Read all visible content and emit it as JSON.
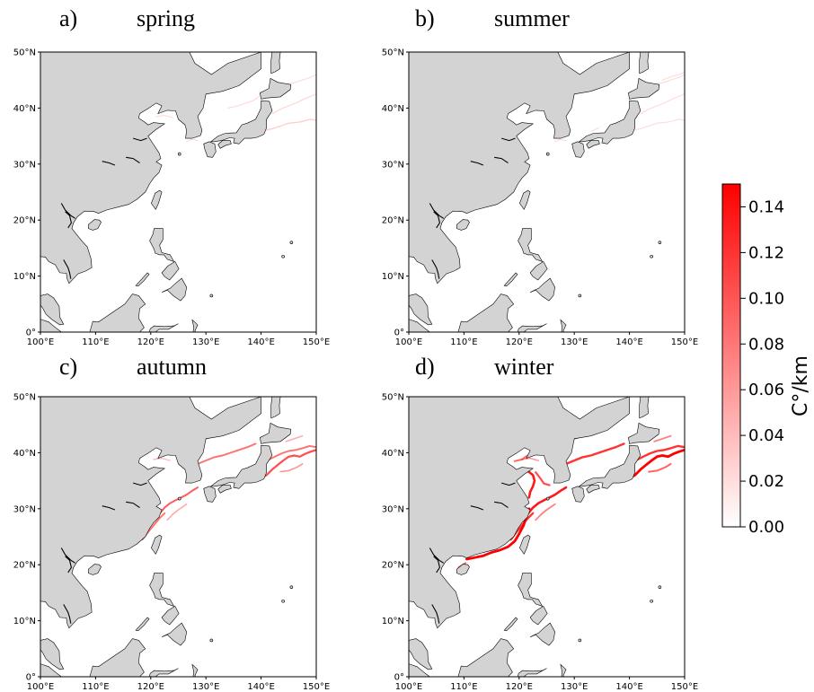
{
  "panels": [
    {
      "letter": "a)",
      "season": "spring",
      "intensity": 0.35,
      "front_regions": [
        "kuroshio-extension-weak",
        "japan-sea-weak"
      ]
    },
    {
      "letter": "b)",
      "season": "summer",
      "intensity": 0.25,
      "front_regions": [
        "kuroshio-extension-weak",
        "oyashio-weak"
      ]
    },
    {
      "letter": "c)",
      "season": "autumn",
      "intensity": 0.7,
      "front_regions": [
        "kuroshio-extension",
        "east-china-sea-shelf",
        "japan-sea"
      ]
    },
    {
      "letter": "d)",
      "season": "winter",
      "intensity": 1.0,
      "front_regions": [
        "kuroshio-extension",
        "east-china-sea-shelf",
        "japan-sea",
        "yellow-sea",
        "taiwan-strait"
      ]
    }
  ],
  "map": {
    "lon_ticks": [
      "100°E",
      "110°E",
      "120°E",
      "130°E",
      "140°E",
      "150°E"
    ],
    "lat_ticks": [
      "0°",
      "10°N",
      "20°N",
      "30°N",
      "40°N",
      "50°N"
    ],
    "land_color": "#d3d3d3",
    "ocean_color": "#ffffff",
    "coast_color": "#000000",
    "front_color": "#ff0000"
  },
  "colorbar": {
    "label": "C°/km",
    "ticks": [
      "0.00",
      "0.02",
      "0.04",
      "0.06",
      "0.08",
      "0.10",
      "0.12",
      "0.14"
    ],
    "vmin": 0.0,
    "vmax": 0.15,
    "color_low": "#ffffff",
    "color_high": "#ff0000"
  }
}
